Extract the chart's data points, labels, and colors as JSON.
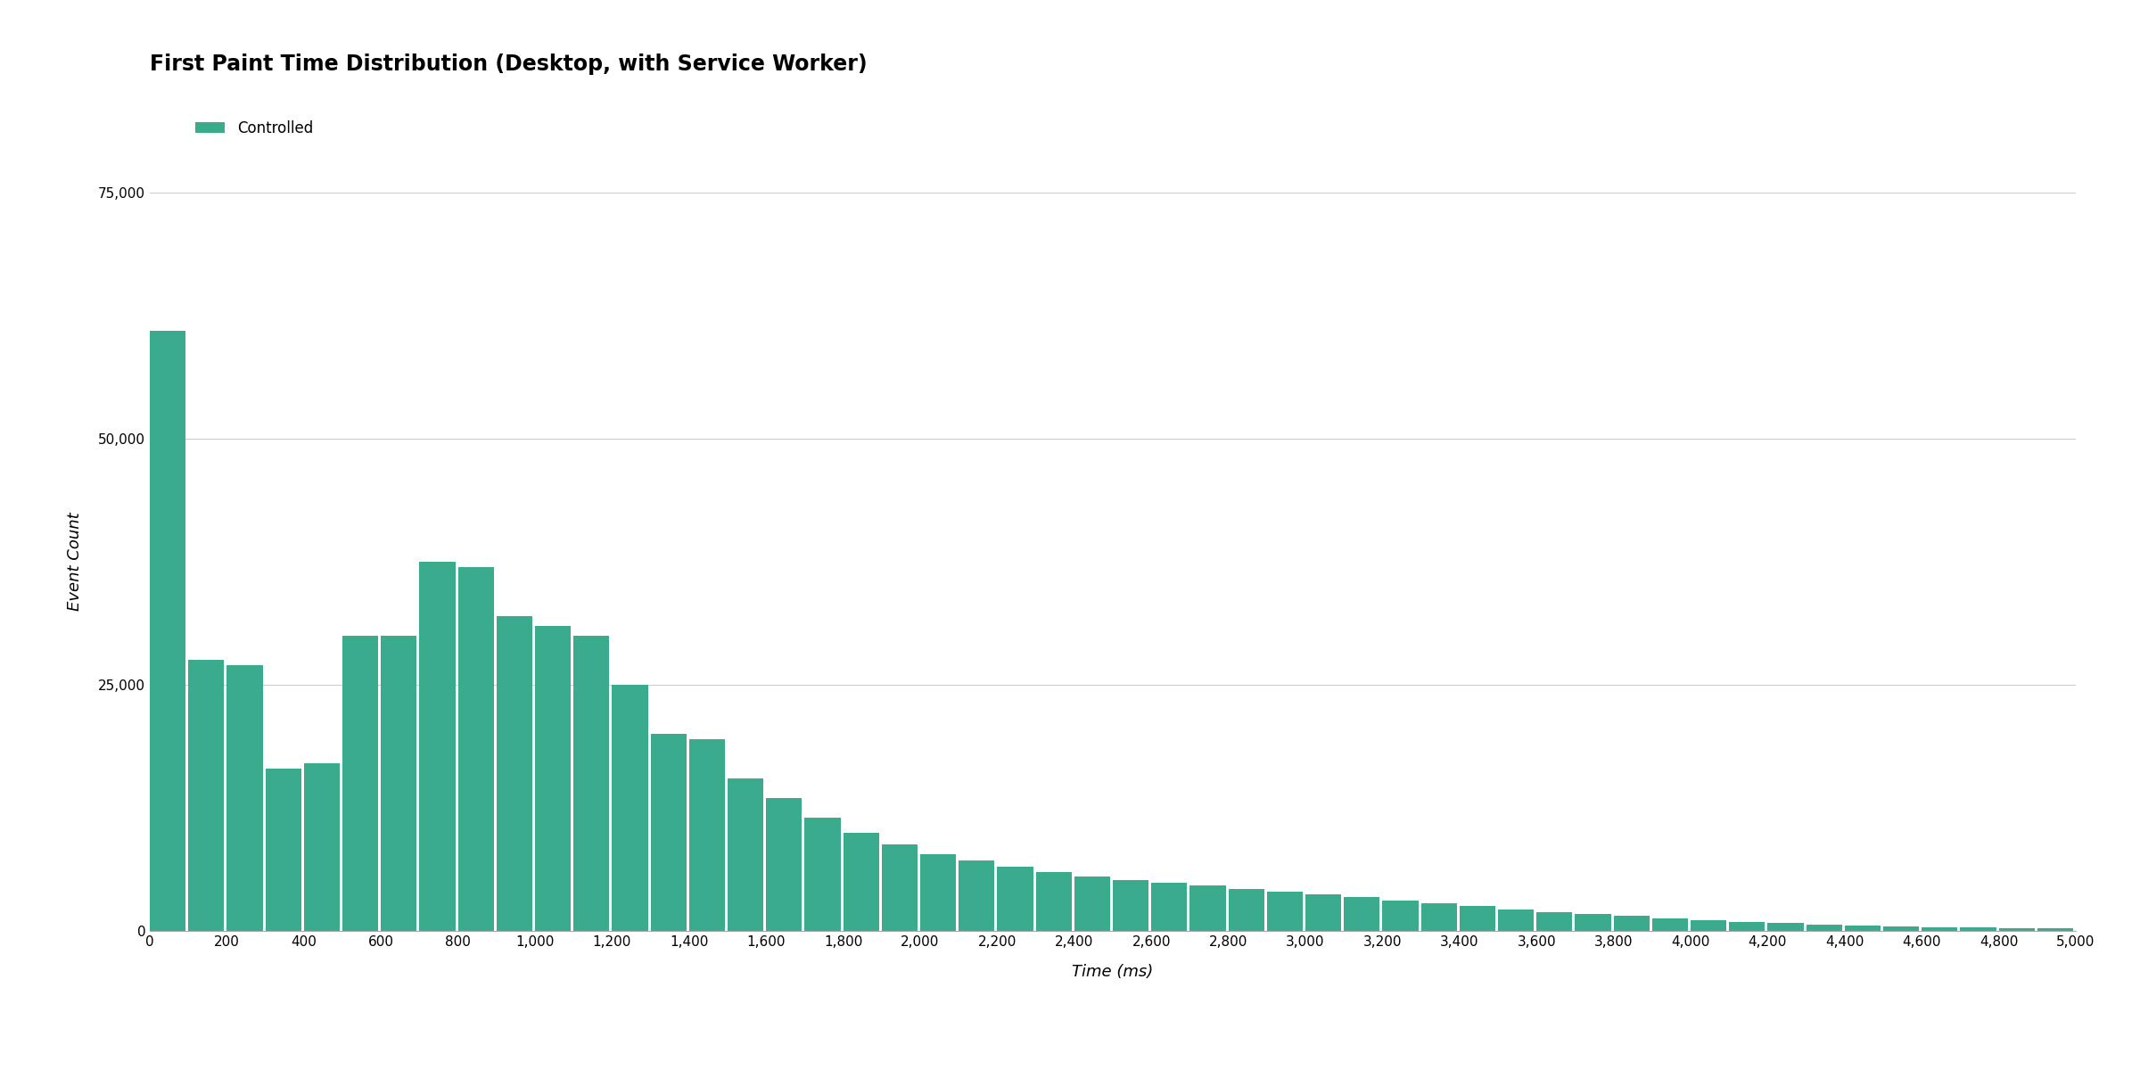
{
  "title": "First Paint Time Distribution (Desktop, with Service Worker)",
  "xlabel": "Time (ms)",
  "ylabel": "Event Count",
  "legend_label": "Controlled",
  "bar_color": "#3aab8c",
  "background_color": "#ffffff",
  "grid_color": "#cccccc",
  "bin_width": 100,
  "values": [
    61000,
    27500,
    27000,
    16500,
    17000,
    30000,
    30000,
    37500,
    37000,
    32000,
    31000,
    30000,
    25000,
    20000,
    19500,
    15500,
    13500,
    11500,
    10000,
    8800,
    7800,
    7200,
    6500,
    6000,
    5500,
    5200,
    4900,
    4600,
    4300,
    4000,
    3700,
    3400,
    3100,
    2800,
    2500,
    2200,
    1900,
    1700,
    1500,
    1300,
    1100,
    950,
    800,
    650,
    550,
    450,
    380,
    320,
    270,
    230
  ],
  "ylim": [
    0,
    75000
  ],
  "yticks": [
    0,
    25000,
    50000,
    75000
  ],
  "xticks": [
    0,
    200,
    400,
    600,
    800,
    1000,
    1200,
    1400,
    1600,
    1800,
    2000,
    2200,
    2400,
    2600,
    2800,
    3000,
    3200,
    3400,
    3600,
    3800,
    4000,
    4200,
    4400,
    4600,
    4800,
    5000
  ],
  "title_fontsize": 17,
  "label_fontsize": 13,
  "tick_fontsize": 11,
  "legend_fontsize": 12
}
